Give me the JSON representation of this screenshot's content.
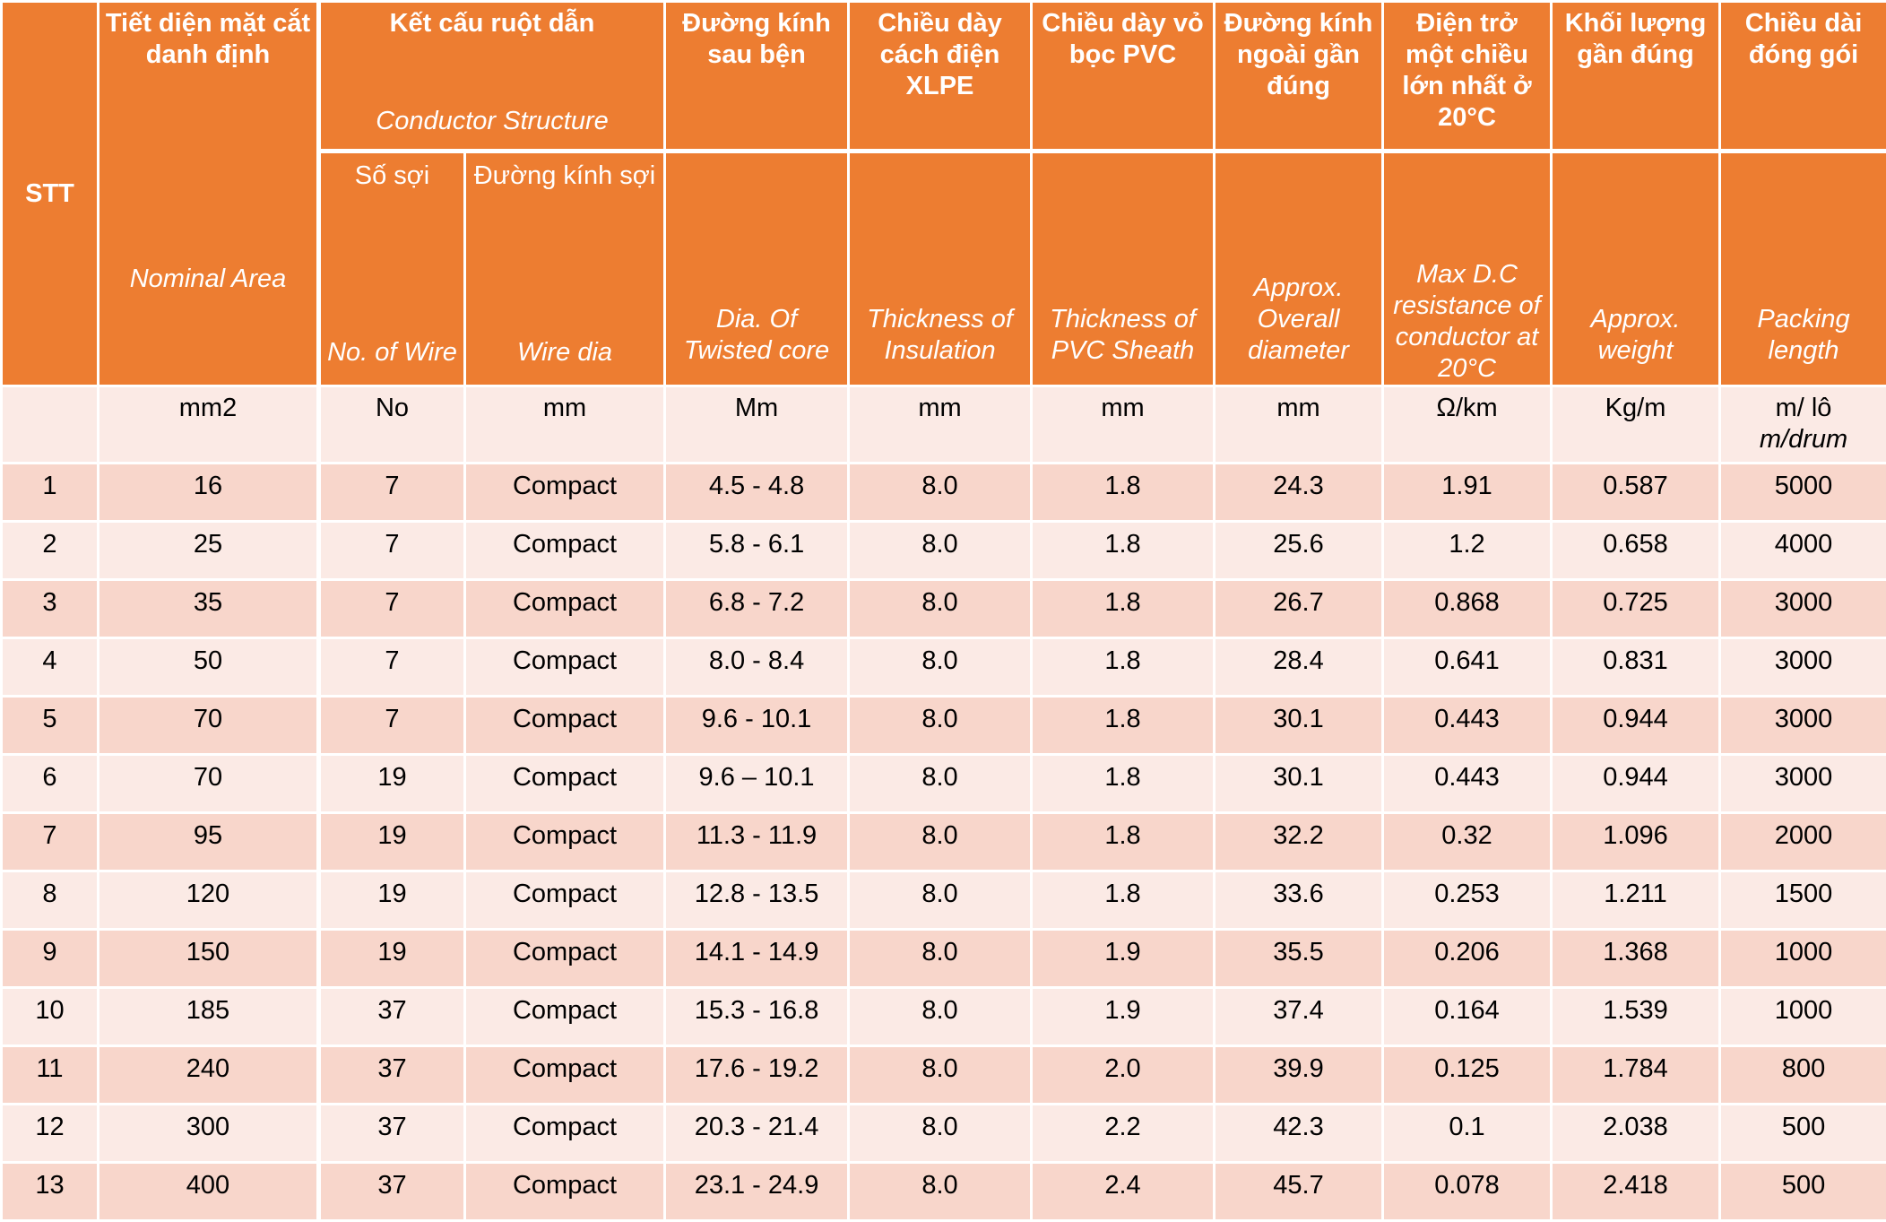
{
  "headers": {
    "stt": "STT",
    "nominal_area": {
      "vi": "Tiết diện mặt cắt danh định",
      "en": "Nominal Area"
    },
    "conductor_structure": {
      "vi": "Kết cấu ruột dẫn",
      "en": "Conductor Structure"
    },
    "no_of_wire": {
      "vi": "Số sợi",
      "en": "No. of Wire"
    },
    "wire_dia": {
      "vi": "Đường kính sợi",
      "en": "Wire dia"
    },
    "twisted_core": {
      "vi": "Đường kính sau bện",
      "en": "Dia. Of Twisted core"
    },
    "insulation": {
      "vi": "Chiều dày cách điện XLPE",
      "en": "Thickness of Insulation"
    },
    "sheath": {
      "vi": "Chiều dày vỏ bọc PVC",
      "en": "Thickness of PVC Sheath"
    },
    "overall_dia": {
      "vi": "Đường kính ngoài gần đúng",
      "en": "Approx. Overall diameter"
    },
    "resistance": {
      "vi": "Điện trở một chiều lớn nhất ở 20°C",
      "en": "Max D.C resistance of conductor at 20°C"
    },
    "weight": {
      "vi": "Khối lượng gần đúng",
      "en": "Approx. weight"
    },
    "packing": {
      "vi": "Chiều dài đóng gói",
      "en": "Packing length"
    }
  },
  "units": {
    "stt": "",
    "nominal_area": "mm2",
    "no_of_wire": "No",
    "wire_dia": "mm",
    "twisted_core": "Mm",
    "insulation": "mm",
    "sheath": "mm",
    "overall_dia": "mm",
    "resistance": "Ω/km",
    "weight": "Kg/m",
    "packing": "m/ lô",
    "packing_en": "m/drum"
  },
  "rows": [
    [
      "1",
      "16",
      "7",
      "Compact",
      "4.5 - 4.8",
      "8.0",
      "1.8",
      "24.3",
      "1.91",
      "0.587",
      "5000"
    ],
    [
      "2",
      "25",
      "7",
      "Compact",
      "5.8 - 6.1",
      "8.0",
      "1.8",
      "25.6",
      "1.2",
      "0.658",
      "4000"
    ],
    [
      "3",
      "35",
      "7",
      "Compact",
      "6.8 - 7.2",
      "8.0",
      "1.8",
      "26.7",
      "0.868",
      "0.725",
      "3000"
    ],
    [
      "4",
      "50",
      "7",
      "Compact",
      "8.0 - 8.4",
      "8.0",
      "1.8",
      "28.4",
      "0.641",
      "0.831",
      "3000"
    ],
    [
      "5",
      "70",
      "7",
      "Compact",
      "9.6 - 10.1",
      "8.0",
      "1.8",
      "30.1",
      "0.443",
      "0.944",
      "3000"
    ],
    [
      "6",
      "70",
      "19",
      "Compact",
      "9.6 – 10.1",
      "8.0",
      "1.8",
      "30.1",
      "0.443",
      "0.944",
      "3000"
    ],
    [
      "7",
      "95",
      "19",
      "Compact",
      "11.3 - 11.9",
      "8.0",
      "1.8",
      "32.2",
      "0.32",
      "1.096",
      "2000"
    ],
    [
      "8",
      "120",
      "19",
      "Compact",
      "12.8 - 13.5",
      "8.0",
      "1.8",
      "33.6",
      "0.253",
      "1.211",
      "1500"
    ],
    [
      "9",
      "150",
      "19",
      "Compact",
      "14.1 - 14.9",
      "8.0",
      "1.9",
      "35.5",
      "0.206",
      "1.368",
      "1000"
    ],
    [
      "10",
      "185",
      "37",
      "Compact",
      "15.3 - 16.8",
      "8.0",
      "1.9",
      "37.4",
      "0.164",
      "1.539",
      "1000"
    ],
    [
      "11",
      "240",
      "37",
      "Compact",
      "17.6 - 19.2",
      "8.0",
      "2.0",
      "39.9",
      "0.125",
      "1.784",
      "800"
    ],
    [
      "12",
      "300",
      "37",
      "Compact",
      "20.3 - 21.4",
      "8.0",
      "2.2",
      "42.3",
      "0.1",
      "2.038",
      "500"
    ],
    [
      "13",
      "400",
      "37",
      "Compact",
      "23.1 - 24.9",
      "8.0",
      "2.4",
      "45.7",
      "0.078",
      "2.418",
      "500"
    ]
  ]
}
